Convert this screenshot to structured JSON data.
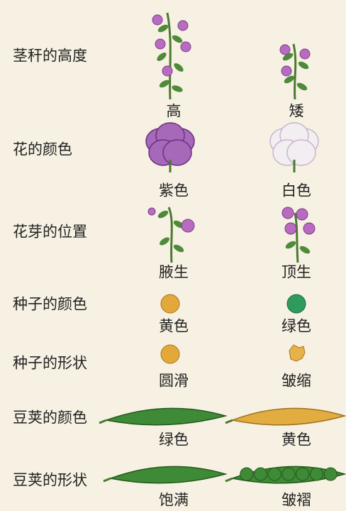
{
  "traits": [
    {
      "label": "茎秆的高度",
      "dominant": "高",
      "recessive": "矮"
    },
    {
      "label": "花的颜色",
      "dominant": "紫色",
      "recessive": "白色"
    },
    {
      "label": "花芽的位置",
      "dominant": "腋生",
      "recessive": "顶生"
    },
    {
      "label": "种子的颜色",
      "dominant": "黄色",
      "recessive": "绿色"
    },
    {
      "label": "种子的形状",
      "dominant": "圆滑",
      "recessive": "皱缩"
    },
    {
      "label": "豆荚的颜色",
      "dominant": "绿色",
      "recessive": "黄色"
    },
    {
      "label": "豆荚的形状",
      "dominant": "饱满",
      "recessive": "皱褶"
    }
  ]
}
